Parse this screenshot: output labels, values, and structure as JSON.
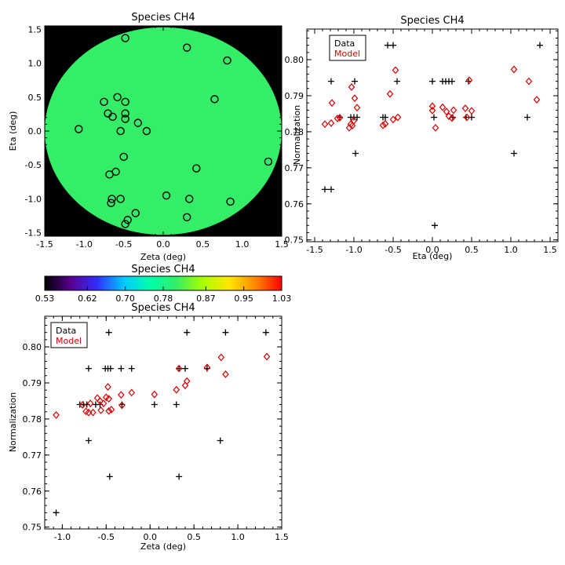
{
  "chart_data": [
    {
      "type": "scatter",
      "title": "Species CH4",
      "xlabel": "Zeta (deg)",
      "ylabel": "Eta (deg)",
      "xlim": [
        -1.5,
        1.5
      ],
      "ylim": [
        -1.55,
        1.55
      ],
      "xticks": [
        "-1.5",
        "-1.0",
        "-0.5",
        "0.0",
        "0.5",
        "1.0",
        "1.5"
      ],
      "yticks": [
        "-1.5",
        "-1.0",
        "-0.5",
        "0.0",
        "0.5",
        "1.0",
        "1.5"
      ],
      "background_color": "#000000",
      "field_color": "#33ee66",
      "points": [
        [
          -0.48,
          1.37
        ],
        [
          0.3,
          1.23
        ],
        [
          0.81,
          1.04
        ],
        [
          -0.58,
          0.5
        ],
        [
          -0.75,
          0.43
        ],
        [
          -0.48,
          0.43
        ],
        [
          0.65,
          0.47
        ],
        [
          -0.7,
          0.26
        ],
        [
          -0.64,
          0.21
        ],
        [
          -0.48,
          0.26
        ],
        [
          -0.48,
          0.18
        ],
        [
          -0.32,
          0.12
        ],
        [
          -1.07,
          0.03
        ],
        [
          -0.54,
          0.0
        ],
        [
          -0.21,
          0.0
        ],
        [
          -0.5,
          -0.38
        ],
        [
          1.33,
          -0.45
        ],
        [
          -0.6,
          -0.6
        ],
        [
          -0.68,
          -0.64
        ],
        [
          0.42,
          -0.55
        ],
        [
          0.04,
          -0.95
        ],
        [
          -0.65,
          -1.0
        ],
        [
          -0.66,
          -1.06
        ],
        [
          -0.54,
          -1.0
        ],
        [
          0.33,
          -1.0
        ],
        [
          0.85,
          -1.04
        ],
        [
          -0.35,
          -1.21
        ],
        [
          -0.45,
          -1.31
        ],
        [
          -0.48,
          -1.37
        ],
        [
          0.3,
          -1.27
        ]
      ]
    },
    {
      "type": "scatter",
      "title": "Species CH4",
      "xlabel": "Eta (deg)",
      "ylabel": "Normalization",
      "xlim": [
        -1.6,
        1.6
      ],
      "ylim": [
        0.7495,
        0.8085
      ],
      "xticks": [
        "-1.5",
        "-1.0",
        "-0.5",
        "0.0",
        "0.5",
        "1.0",
        "1.5"
      ],
      "yticks": [
        "0.75",
        "0.76",
        "0.77",
        "0.78",
        "0.79",
        "0.80"
      ],
      "legend": [
        "Data",
        "Model"
      ],
      "legend_position": "top-left",
      "series": [
        {
          "name": "Data",
          "marker": "plus",
          "color": "#000000",
          "points": [
            [
              -1.37,
              0.764
            ],
            [
              -1.29,
              0.764
            ],
            [
              -1.29,
              0.794
            ],
            [
              -1.18,
              0.784
            ],
            [
              -1.05,
              0.804
            ],
            [
              -1.04,
              0.784
            ],
            [
              -1.0,
              0.784
            ],
            [
              -0.99,
              0.794
            ],
            [
              -0.98,
              0.774
            ],
            [
              -0.96,
              0.784
            ],
            [
              -0.63,
              0.784
            ],
            [
              -0.6,
              0.784
            ],
            [
              -0.57,
              0.804
            ],
            [
              -0.5,
              0.804
            ],
            [
              -0.45,
              0.794
            ],
            [
              0.0,
              0.794
            ],
            [
              0.02,
              0.784
            ],
            [
              0.03,
              0.754
            ],
            [
              0.13,
              0.794
            ],
            [
              0.17,
              0.794
            ],
            [
              0.21,
              0.794
            ],
            [
              0.25,
              0.794
            ],
            [
              0.26,
              0.784
            ],
            [
              0.43,
              0.784
            ],
            [
              0.46,
              0.794
            ],
            [
              0.5,
              0.784
            ],
            [
              1.04,
              0.774
            ],
            [
              1.21,
              0.784
            ],
            [
              1.37,
              0.804
            ]
          ]
        },
        {
          "name": "Model",
          "marker": "diamond",
          "color": "#dd0000",
          "points": [
            [
              -1.37,
              0.7821
            ],
            [
              -1.29,
              0.7824
            ],
            [
              -1.28,
              0.788
            ],
            [
              -1.21,
              0.7837
            ],
            [
              -1.18,
              0.7839
            ],
            [
              -1.06,
              0.7811
            ],
            [
              -1.04,
              0.7821
            ],
            [
              -1.03,
              0.7924
            ],
            [
              -1.02,
              0.7817
            ],
            [
              -1.0,
              0.7831
            ],
            [
              -0.99,
              0.7893
            ],
            [
              -0.96,
              0.7867
            ],
            [
              -0.63,
              0.7818
            ],
            [
              -0.6,
              0.7822
            ],
            [
              -0.54,
              0.7905
            ],
            [
              -0.5,
              0.7834
            ],
            [
              -0.47,
              0.7971
            ],
            [
              -0.44,
              0.784
            ],
            [
              -0.0,
              0.7871
            ],
            [
              0.0,
              0.7859
            ],
            [
              0.04,
              0.7811
            ],
            [
              0.13,
              0.7868
            ],
            [
              0.18,
              0.7856
            ],
            [
              0.21,
              0.7843
            ],
            [
              0.25,
              0.7838
            ],
            [
              0.27,
              0.786
            ],
            [
              0.42,
              0.7865
            ],
            [
              0.47,
              0.7943
            ],
            [
              0.5,
              0.7858
            ],
            [
              0.44,
              0.784
            ],
            [
              1.04,
              0.7973
            ],
            [
              1.23,
              0.794
            ],
            [
              1.33,
              0.7889
            ]
          ]
        }
      ]
    },
    {
      "type": "colorbar",
      "title": "Species CH4",
      "range": [
        0.53,
        1.03
      ],
      "tick_labels": [
        "0.53",
        "0.62",
        "0.70",
        "0.78",
        "0.87",
        "0.95",
        "1.03"
      ],
      "colors": [
        "#000000",
        "#5a0090",
        "#3030ff",
        "#00c8ff",
        "#00ffaa",
        "#33ee66",
        "#aaff00",
        "#ffe600",
        "#ff8800",
        "#ff0000"
      ]
    },
    {
      "type": "scatter",
      "title": "Species CH4",
      "xlabel": "Zeta (deg)",
      "ylabel": "Normalization",
      "xlim": [
        -1.2,
        1.5
      ],
      "ylim": [
        0.7495,
        0.8085
      ],
      "xticks": [
        "-1.0",
        "-0.5",
        "0.0",
        "0.5",
        "1.0",
        "1.5"
      ],
      "yticks": [
        "0.75",
        "0.76",
        "0.77",
        "0.78",
        "0.79",
        "0.80"
      ],
      "legend": [
        "Data",
        "Model"
      ],
      "legend_position": "top-left",
      "series": [
        {
          "name": "Data",
          "marker": "plus",
          "color": "#000000",
          "points": [
            [
              -1.07,
              0.754
            ],
            [
              -0.8,
              0.784
            ],
            [
              -0.76,
              0.784
            ],
            [
              -0.72,
              0.784
            ],
            [
              -0.7,
              0.794
            ],
            [
              -0.7,
              0.774
            ],
            [
              -0.62,
              0.784
            ],
            [
              -0.57,
              0.784
            ],
            [
              -0.51,
              0.794
            ],
            [
              -0.48,
              0.794
            ],
            [
              -0.47,
              0.804
            ],
            [
              -0.46,
              0.764
            ],
            [
              -0.45,
              0.794
            ],
            [
              -0.33,
              0.794
            ],
            [
              -0.32,
              0.784
            ],
            [
              -0.21,
              0.794
            ],
            [
              0.05,
              0.784
            ],
            [
              0.3,
              0.784
            ],
            [
              0.33,
              0.764
            ],
            [
              0.33,
              0.794
            ],
            [
              0.4,
              0.794
            ],
            [
              0.42,
              0.804
            ],
            [
              0.65,
              0.794
            ],
            [
              0.8,
              0.774
            ],
            [
              0.86,
              0.804
            ],
            [
              1.32,
              0.804
            ]
          ]
        },
        {
          "name": "Model",
          "marker": "diamond",
          "color": "#dd0000",
          "points": [
            [
              -1.07,
              0.7811
            ],
            [
              -0.77,
              0.7839
            ],
            [
              -0.73,
              0.7821
            ],
            [
              -0.7,
              0.7818
            ],
            [
              -0.68,
              0.7843
            ],
            [
              -0.65,
              0.7818
            ],
            [
              -0.6,
              0.7858
            ],
            [
              -0.57,
              0.785
            ],
            [
              -0.56,
              0.7824
            ],
            [
              -0.53,
              0.7843
            ],
            [
              -0.5,
              0.786
            ],
            [
              -0.48,
              0.7889
            ],
            [
              -0.47,
              0.7856
            ],
            [
              -0.47,
              0.7822
            ],
            [
              -0.44,
              0.7826
            ],
            [
              -0.33,
              0.7867
            ],
            [
              -0.32,
              0.7838
            ],
            [
              -0.21,
              0.7873
            ],
            [
              0.05,
              0.7868
            ],
            [
              0.3,
              0.7881
            ],
            [
              0.33,
              0.794
            ],
            [
              0.4,
              0.7893
            ],
            [
              0.42,
              0.7905
            ],
            [
              0.65,
              0.7943
            ],
            [
              0.81,
              0.7971
            ],
            [
              0.86,
              0.7924
            ],
            [
              1.33,
              0.7973
            ]
          ]
        }
      ]
    }
  ]
}
